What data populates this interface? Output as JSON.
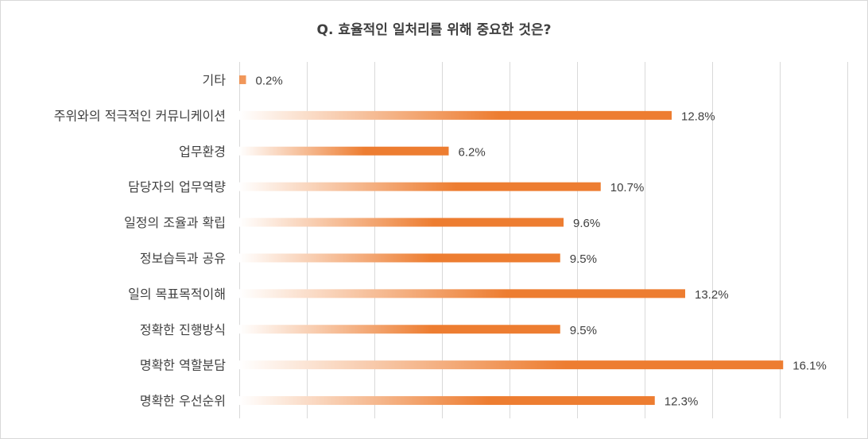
{
  "chart_data": {
    "type": "bar",
    "orientation": "horizontal",
    "title": "Q. 효율적인 일처리를 위해 중요한 것은?",
    "categories": [
      "기타",
      "주위와의 적극적인 커뮤니케이션",
      "업무환경",
      "담당자의 업무역량",
      "일정의 조율과 확립",
      "정보습득과 공유",
      "일의 목표목적이해",
      "정확한 진행방식",
      "명확한 역할분담",
      "명확한 우선순위"
    ],
    "values": [
      0.2,
      12.8,
      6.2,
      10.7,
      9.6,
      9.5,
      13.2,
      9.5,
      16.1,
      12.3
    ],
    "value_labels": [
      "0.2%",
      "12.8%",
      "6.2%",
      "10.7%",
      "9.6%",
      "9.5%",
      "13.2%",
      "9.5%",
      "16.1%",
      "12.3%"
    ],
    "xlim": [
      0,
      18
    ],
    "grid": true,
    "legend": "none",
    "colors": {
      "bar": "#ed7d31",
      "bar_fade": "#ffffff",
      "grid": "#d9d9d9",
      "text": "#404040"
    }
  }
}
